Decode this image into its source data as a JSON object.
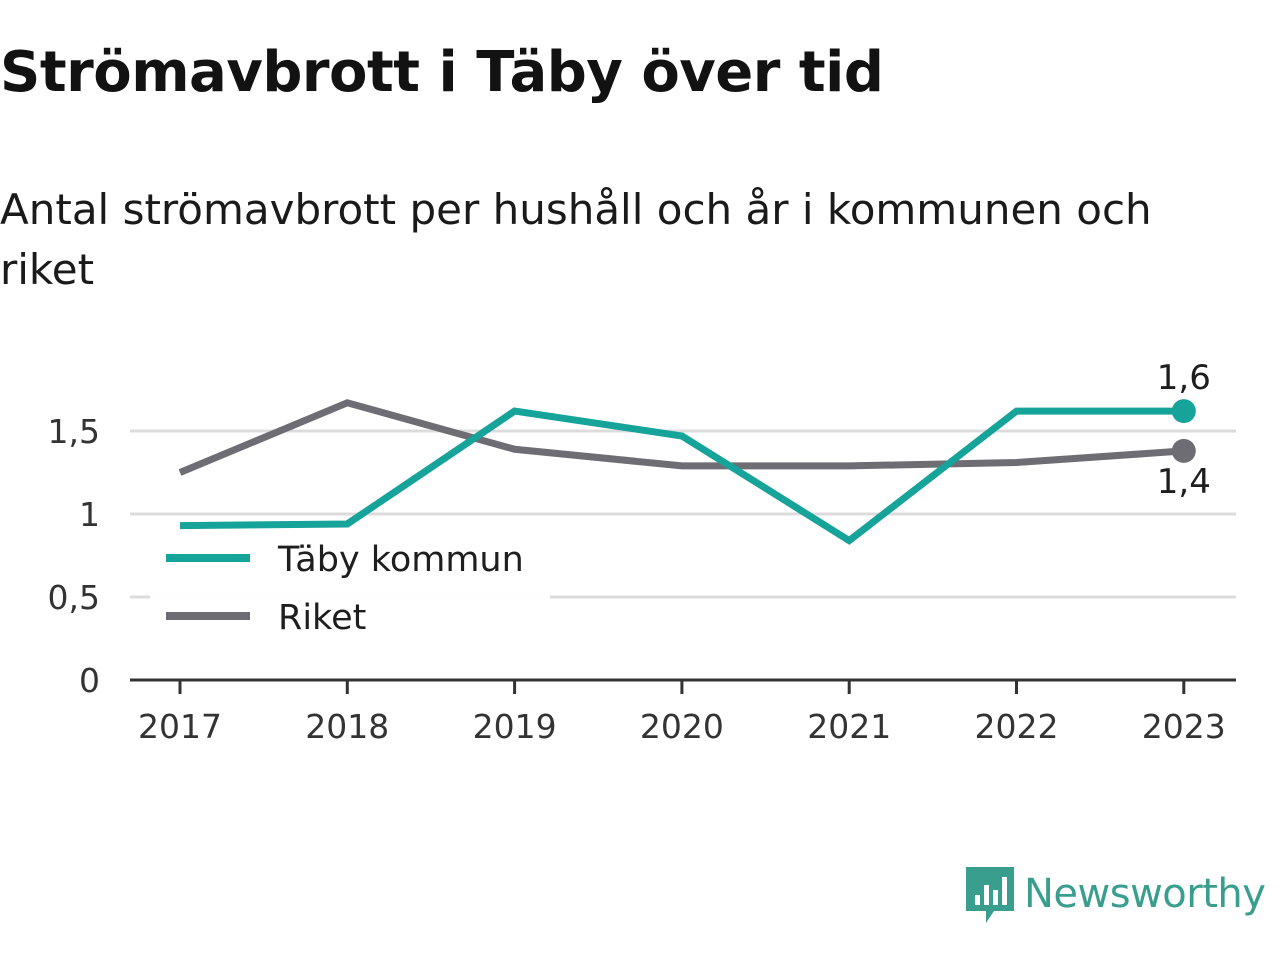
{
  "title": "Strömavbrott i Täby över tid",
  "subtitle": "Antal strömavbrott per hushåll och år i kommunen och riket",
  "brand": {
    "name": "Newsworthy",
    "color": "#3a9e8e",
    "icon": "newsworthy-chart-logo-icon"
  },
  "chart_data": {
    "type": "line",
    "x": [
      "2017",
      "2018",
      "2019",
      "2020",
      "2021",
      "2022",
      "2023"
    ],
    "ylim": [
      0,
      1.8
    ],
    "yticks": [
      0,
      0.5,
      1,
      1.5
    ],
    "ytick_labels": [
      "0",
      "0,5",
      "1",
      "1,5"
    ],
    "grid": true,
    "legend_position": "bottom-left",
    "series": [
      {
        "name": "Täby kommun",
        "color": "#15a39a",
        "values": [
          0.93,
          0.94,
          1.62,
          1.47,
          0.84,
          1.62,
          1.62
        ],
        "end_label": "1,6"
      },
      {
        "name": "Riket",
        "color": "#6e6d74",
        "values": [
          1.25,
          1.67,
          1.39,
          1.29,
          1.29,
          1.31,
          1.38
        ],
        "end_label": "1,4"
      }
    ]
  }
}
